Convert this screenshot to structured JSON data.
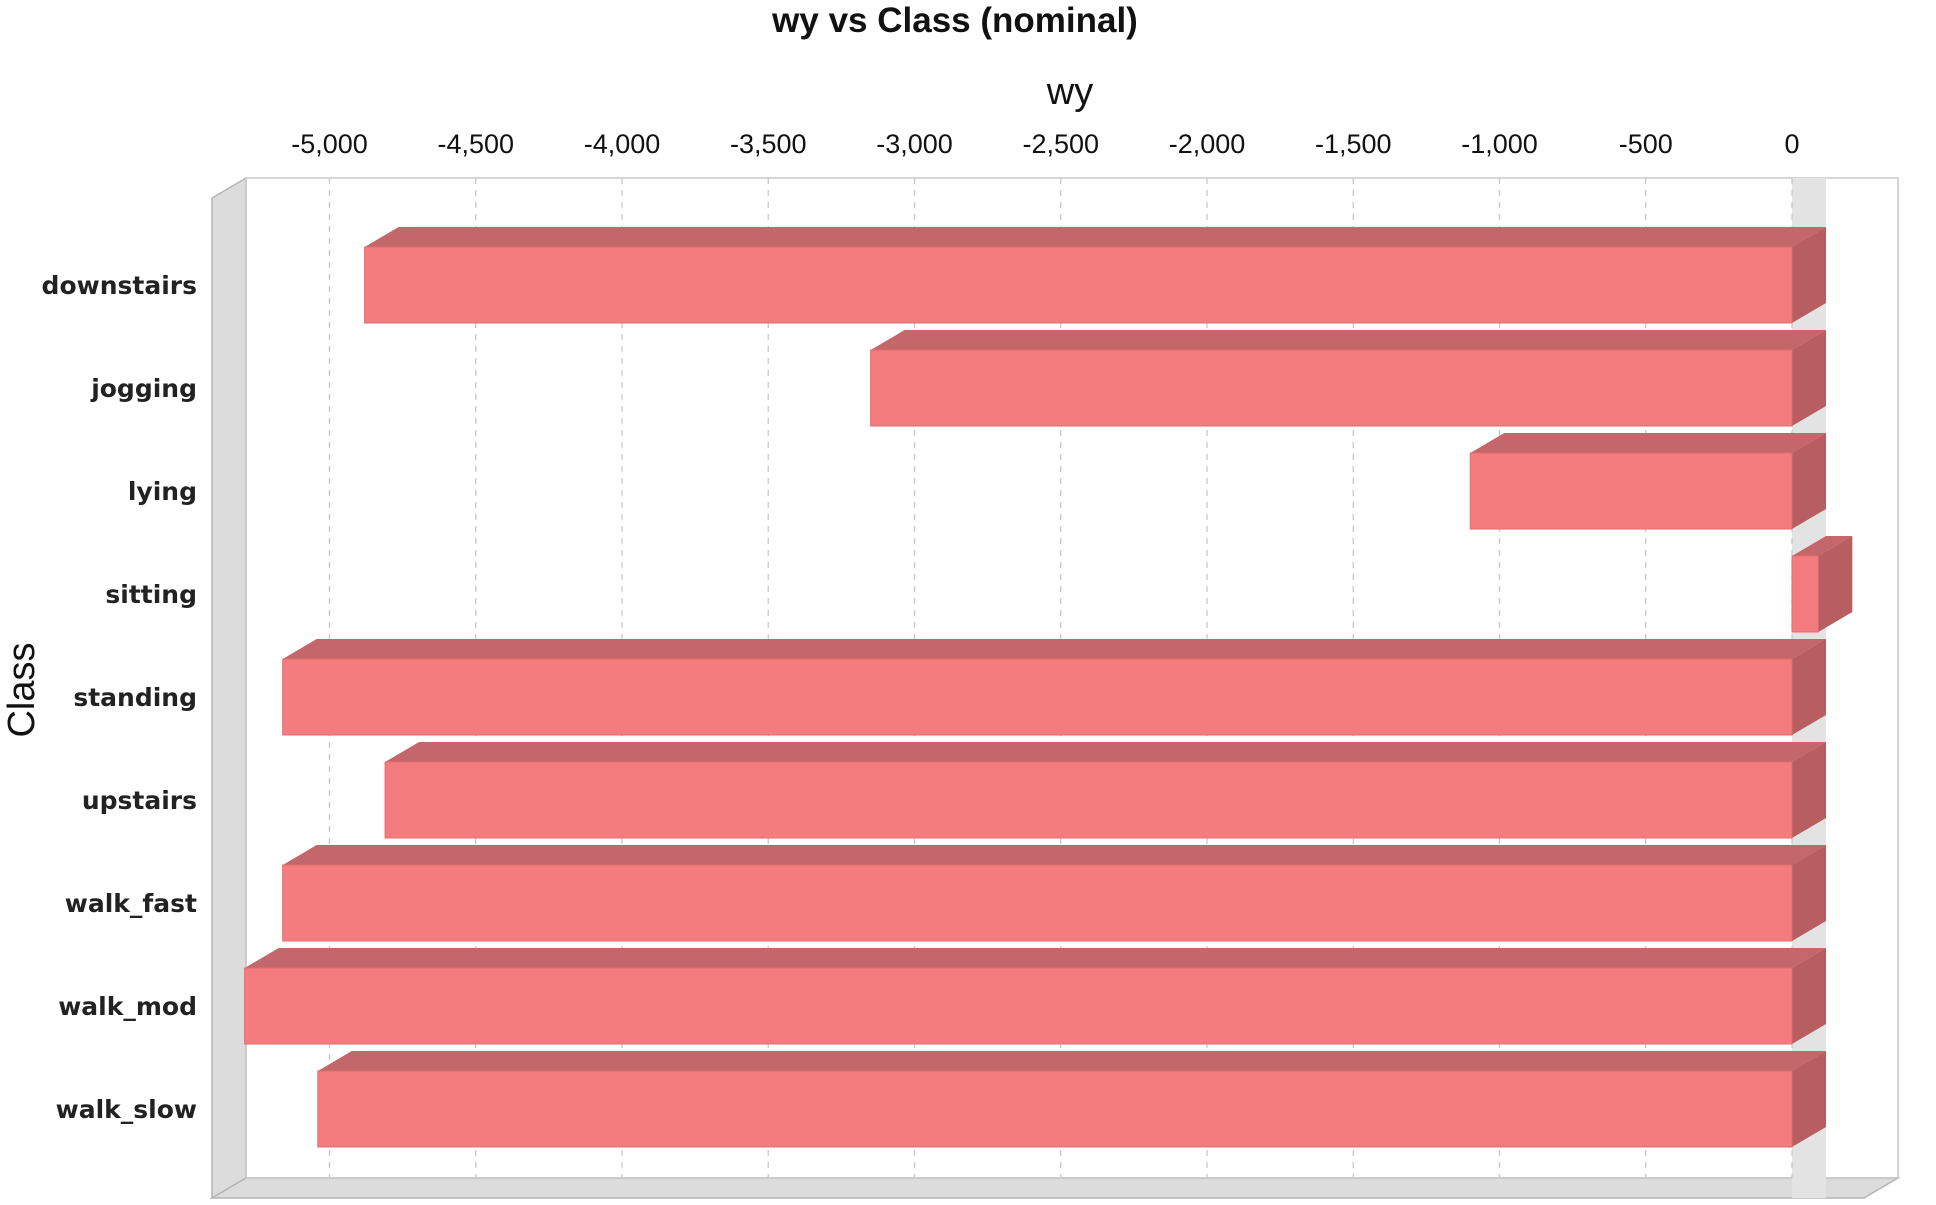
{
  "chart_data": {
    "type": "bar",
    "orientation": "horizontal",
    "title": "wy vs Class (nominal)",
    "xlabel": "wy",
    "ylabel": "Class",
    "xaxis_position": "top",
    "xlim": [
      -5500,
      120
    ],
    "xticks": [
      -5000,
      -4500,
      -4000,
      -3500,
      -3000,
      -2500,
      -2000,
      -1500,
      -1000,
      -500,
      0
    ],
    "xtick_labels": [
      "-5,000",
      "-4,500",
      "-4,000",
      "-3,500",
      "-3,000",
      "-2,500",
      "-2,000",
      "-1,500",
      "-1,000",
      "-500",
      "0"
    ],
    "categories": [
      "downstairs",
      "jogging",
      "lying",
      "sitting",
      "standing",
      "upstairs",
      "walk_fast",
      "walk_mod",
      "walk_slow"
    ],
    "values": [
      -4880,
      -3150,
      -1100,
      90,
      -5160,
      -4810,
      -5160,
      -5290,
      -5040
    ],
    "grid": true,
    "legend": "none",
    "colors": {
      "bar_face": "#f47c7e",
      "bar_top": "#c4676a",
      "bar_side": "#b85d60",
      "wall": "#dcdcdc",
      "wall_edge": "#b4b4b4"
    }
  }
}
